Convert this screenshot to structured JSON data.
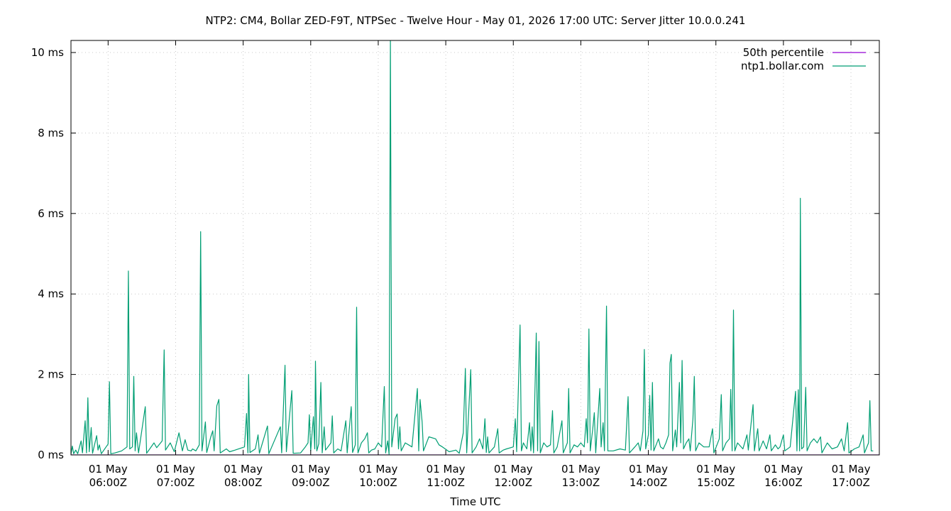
{
  "chart_data": {
    "type": "line",
    "title": "NTP2: CM4, Bollar ZED-F9T, NTPSec - Twelve Hour - May 01, 2026 17:00 UTC: Server Jitter 10.0.0.241",
    "xlabel": "Time UTC",
    "ylabel": "",
    "xlim": [
      "2026-05-01T05:27Z",
      "2026-05-01T17:25Z"
    ],
    "ylim": [
      0,
      10.3
    ],
    "y_unit": "ms",
    "grid": true,
    "legend_position": "top-right",
    "x_ticks": [
      {
        "t": 6,
        "line1": "01 May",
        "line2": "06:00Z"
      },
      {
        "t": 7,
        "line1": "01 May",
        "line2": "07:00Z"
      },
      {
        "t": 8,
        "line1": "01 May",
        "line2": "08:00Z"
      },
      {
        "t": 9,
        "line1": "01 May",
        "line2": "09:00Z"
      },
      {
        "t": 10,
        "line1": "01 May",
        "line2": "10:00Z"
      },
      {
        "t": 11,
        "line1": "01 May",
        "line2": "11:00Z"
      },
      {
        "t": 12,
        "line1": "01 May",
        "line2": "12:00Z"
      },
      {
        "t": 13,
        "line1": "01 May",
        "line2": "13:00Z"
      },
      {
        "t": 14,
        "line1": "01 May",
        "line2": "14:00Z"
      },
      {
        "t": 15,
        "line1": "01 May",
        "line2": "15:00Z"
      },
      {
        "t": 16,
        "line1": "01 May",
        "line2": "16:00Z"
      },
      {
        "t": 17,
        "line1": "01 May",
        "line2": "17:00Z"
      }
    ],
    "y_ticks": [
      {
        "v": 0,
        "label": "0 ms"
      },
      {
        "v": 2,
        "label": "2 ms"
      },
      {
        "v": 4,
        "label": "4 ms"
      },
      {
        "v": 6,
        "label": "6 ms"
      },
      {
        "v": 8,
        "label": "8 ms"
      },
      {
        "v": 10,
        "label": "10 ms"
      }
    ],
    "series": [
      {
        "name": "50th percentile",
        "color": "#9400d3",
        "points": [
          [
            5.45,
            0.0
          ],
          [
            17.42,
            0.0
          ]
        ]
      },
      {
        "name": "ntp1.bollar.com",
        "color": "#009e73",
        "points": [
          [
            5.45,
            0.02
          ],
          [
            5.47,
            0.22
          ],
          [
            5.49,
            0.03
          ],
          [
            5.52,
            0.12
          ],
          [
            5.55,
            0.03
          ],
          [
            5.6,
            0.35
          ],
          [
            5.62,
            0.05
          ],
          [
            5.66,
            0.85
          ],
          [
            5.68,
            0.05
          ],
          [
            5.7,
            1.42
          ],
          [
            5.72,
            0.08
          ],
          [
            5.75,
            0.68
          ],
          [
            5.77,
            0.04
          ],
          [
            5.83,
            0.48
          ],
          [
            5.85,
            0.12
          ],
          [
            5.87,
            0.25
          ],
          [
            5.9,
            0.03
          ],
          [
            6.0,
            0.27
          ],
          [
            6.02,
            1.82
          ],
          [
            6.04,
            0.03
          ],
          [
            6.1,
            0.05
          ],
          [
            6.2,
            0.1
          ],
          [
            6.28,
            0.2
          ],
          [
            6.3,
            4.57
          ],
          [
            6.32,
            0.15
          ],
          [
            6.36,
            0.2
          ],
          [
            6.38,
            1.95
          ],
          [
            6.4,
            0.1
          ],
          [
            6.42,
            0.55
          ],
          [
            6.45,
            0.05
          ],
          [
            6.55,
            1.2
          ],
          [
            6.57,
            0.04
          ],
          [
            6.68,
            0.3
          ],
          [
            6.72,
            0.18
          ],
          [
            6.8,
            0.35
          ],
          [
            6.83,
            2.61
          ],
          [
            6.85,
            0.12
          ],
          [
            6.92,
            0.3
          ],
          [
            6.98,
            0.08
          ],
          [
            7.05,
            0.55
          ],
          [
            7.1,
            0.1
          ],
          [
            7.14,
            0.38
          ],
          [
            7.18,
            0.12
          ],
          [
            7.23,
            0.1
          ],
          [
            7.25,
            0.15
          ],
          [
            7.28,
            0.12
          ],
          [
            7.3,
            0.1
          ],
          [
            7.35,
            0.25
          ],
          [
            7.37,
            5.55
          ],
          [
            7.39,
            0.1
          ],
          [
            7.44,
            0.82
          ],
          [
            7.46,
            0.06
          ],
          [
            7.52,
            0.45
          ],
          [
            7.55,
            0.6
          ],
          [
            7.57,
            0.1
          ],
          [
            7.61,
            1.22
          ],
          [
            7.64,
            1.38
          ],
          [
            7.66,
            0.05
          ],
          [
            7.75,
            0.15
          ],
          [
            7.8,
            0.08
          ],
          [
            7.88,
            0.12
          ],
          [
            8.02,
            0.2
          ],
          [
            8.05,
            1.03
          ],
          [
            8.07,
            0.05
          ],
          [
            8.08,
            2.0
          ],
          [
            8.1,
            0.06
          ],
          [
            8.18,
            0.15
          ],
          [
            8.22,
            0.5
          ],
          [
            8.24,
            0.04
          ],
          [
            8.36,
            0.72
          ],
          [
            8.38,
            0.03
          ],
          [
            8.55,
            0.7
          ],
          [
            8.57,
            0.05
          ],
          [
            8.62,
            2.23
          ],
          [
            8.64,
            0.08
          ],
          [
            8.72,
            1.6
          ],
          [
            8.74,
            0.04
          ],
          [
            8.85,
            0.05
          ],
          [
            8.92,
            0.2
          ],
          [
            8.96,
            0.3
          ],
          [
            8.98,
            1.0
          ],
          [
            9.0,
            0.1
          ],
          [
            9.04,
            0.95
          ],
          [
            9.06,
            0.15
          ],
          [
            9.07,
            2.33
          ],
          [
            9.09,
            0.1
          ],
          [
            9.12,
            0.28
          ],
          [
            9.15,
            1.8
          ],
          [
            9.17,
            0.05
          ],
          [
            9.2,
            0.7
          ],
          [
            9.22,
            0.12
          ],
          [
            9.3,
            0.3
          ],
          [
            9.32,
            0.97
          ],
          [
            9.34,
            0.05
          ],
          [
            9.4,
            0.15
          ],
          [
            9.45,
            0.1
          ],
          [
            9.52,
            0.85
          ],
          [
            9.54,
            0.05
          ],
          [
            9.6,
            1.2
          ],
          [
            9.62,
            0.06
          ],
          [
            9.66,
            0.25
          ],
          [
            9.68,
            3.67
          ],
          [
            9.7,
            0.05
          ],
          [
            9.75,
            0.3
          ],
          [
            9.8,
            0.4
          ],
          [
            9.84,
            0.55
          ],
          [
            9.86,
            0.05
          ],
          [
            9.9,
            0.12
          ],
          [
            9.95,
            0.15
          ],
          [
            10.0,
            0.3
          ],
          [
            10.05,
            0.2
          ],
          [
            10.09,
            1.7
          ],
          [
            10.11,
            0.05
          ],
          [
            10.14,
            0.35
          ],
          [
            10.16,
            0.02
          ],
          [
            10.18,
            10.3
          ],
          [
            10.2,
            0.2
          ],
          [
            10.25,
            0.9
          ],
          [
            10.28,
            1.02
          ],
          [
            10.3,
            0.15
          ],
          [
            10.32,
            0.7
          ],
          [
            10.34,
            0.1
          ],
          [
            10.4,
            0.3
          ],
          [
            10.5,
            0.2
          ],
          [
            10.58,
            1.65
          ],
          [
            10.6,
            0.1
          ],
          [
            10.62,
            1.38
          ],
          [
            10.65,
            0.82
          ],
          [
            10.67,
            0.1
          ],
          [
            10.75,
            0.45
          ],
          [
            10.85,
            0.4
          ],
          [
            10.9,
            0.25
          ],
          [
            10.95,
            0.2
          ],
          [
            11.05,
            0.08
          ],
          [
            11.15,
            0.12
          ],
          [
            11.2,
            0.04
          ],
          [
            11.26,
            0.55
          ],
          [
            11.29,
            2.15
          ],
          [
            11.31,
            0.05
          ],
          [
            11.37,
            2.12
          ],
          [
            11.39,
            0.05
          ],
          [
            11.45,
            0.2
          ],
          [
            11.5,
            0.4
          ],
          [
            11.55,
            0.15
          ],
          [
            11.58,
            0.9
          ],
          [
            11.6,
            0.06
          ],
          [
            11.62,
            0.45
          ],
          [
            11.64,
            0.05
          ],
          [
            11.72,
            0.2
          ],
          [
            11.77,
            0.65
          ],
          [
            11.79,
            0.05
          ],
          [
            11.85,
            0.12
          ],
          [
            11.9,
            0.15
          ],
          [
            12.0,
            0.2
          ],
          [
            12.03,
            0.9
          ],
          [
            12.05,
            0.08
          ],
          [
            12.1,
            3.23
          ],
          [
            12.12,
            0.1
          ],
          [
            12.15,
            0.3
          ],
          [
            12.2,
            0.15
          ],
          [
            12.24,
            0.8
          ],
          [
            12.26,
            0.1
          ],
          [
            12.28,
            0.7
          ],
          [
            12.3,
            0.05
          ],
          [
            12.34,
            3.03
          ],
          [
            12.36,
            0.1
          ],
          [
            12.38,
            2.82
          ],
          [
            12.4,
            0.05
          ],
          [
            12.45,
            0.3
          ],
          [
            12.5,
            0.2
          ],
          [
            12.55,
            0.25
          ],
          [
            12.58,
            1.1
          ],
          [
            12.6,
            0.05
          ],
          [
            12.65,
            0.2
          ],
          [
            12.72,
            0.85
          ],
          [
            12.74,
            0.05
          ],
          [
            12.8,
            0.3
          ],
          [
            12.82,
            1.65
          ],
          [
            12.84,
            0.05
          ],
          [
            12.9,
            0.25
          ],
          [
            12.95,
            0.2
          ],
          [
            13.0,
            0.3
          ],
          [
            13.05,
            0.2
          ],
          [
            13.08,
            0.9
          ],
          [
            13.1,
            0.3
          ],
          [
            13.12,
            3.13
          ],
          [
            13.14,
            0.1
          ],
          [
            13.18,
            0.7
          ],
          [
            13.2,
            1.05
          ],
          [
            13.22,
            0.05
          ],
          [
            13.28,
            1.65
          ],
          [
            13.3,
            0.2
          ],
          [
            13.33,
            0.8
          ],
          [
            13.35,
            0.1
          ],
          [
            13.38,
            3.7
          ],
          [
            13.4,
            0.1
          ],
          [
            13.48,
            0.1
          ],
          [
            13.58,
            0.15
          ],
          [
            13.66,
            0.12
          ],
          [
            13.7,
            1.45
          ],
          [
            13.72,
            0.05
          ],
          [
            13.8,
            0.2
          ],
          [
            13.85,
            0.3
          ],
          [
            13.88,
            0.1
          ],
          [
            13.92,
            0.6
          ],
          [
            13.94,
            2.62
          ],
          [
            13.96,
            0.15
          ],
          [
            14.0,
            0.5
          ],
          [
            14.02,
            1.48
          ],
          [
            14.04,
            0.12
          ],
          [
            14.06,
            1.8
          ],
          [
            14.08,
            0.1
          ],
          [
            14.15,
            0.4
          ],
          [
            14.18,
            0.2
          ],
          [
            14.22,
            0.15
          ],
          [
            14.26,
            0.3
          ],
          [
            14.3,
            0.5
          ],
          [
            14.32,
            2.28
          ],
          [
            14.34,
            2.5
          ],
          [
            14.36,
            0.1
          ],
          [
            14.4,
            0.62
          ],
          [
            14.42,
            0.2
          ],
          [
            14.46,
            1.8
          ],
          [
            14.48,
            0.3
          ],
          [
            14.5,
            2.35
          ],
          [
            14.52,
            0.15
          ],
          [
            14.56,
            0.3
          ],
          [
            14.6,
            0.4
          ],
          [
            14.62,
            0.1
          ],
          [
            14.66,
            0.9
          ],
          [
            14.68,
            1.95
          ],
          [
            14.7,
            0.1
          ],
          [
            14.75,
            0.3
          ],
          [
            14.82,
            0.2
          ],
          [
            14.9,
            0.2
          ],
          [
            14.95,
            0.65
          ],
          [
            14.97,
            0.05
          ],
          [
            15.05,
            0.4
          ],
          [
            15.08,
            1.5
          ],
          [
            15.1,
            0.1
          ],
          [
            15.15,
            0.3
          ],
          [
            15.2,
            0.4
          ],
          [
            15.22,
            1.63
          ],
          [
            15.24,
            0.1
          ],
          [
            15.26,
            3.6
          ],
          [
            15.28,
            0.1
          ],
          [
            15.32,
            0.3
          ],
          [
            15.4,
            0.15
          ],
          [
            15.46,
            0.5
          ],
          [
            15.48,
            0.12
          ],
          [
            15.55,
            1.25
          ],
          [
            15.57,
            0.1
          ],
          [
            15.6,
            0.45
          ],
          [
            15.62,
            0.65
          ],
          [
            15.64,
            0.1
          ],
          [
            15.7,
            0.35
          ],
          [
            15.75,
            0.15
          ],
          [
            15.8,
            0.5
          ],
          [
            15.82,
            0.1
          ],
          [
            15.88,
            0.25
          ],
          [
            15.92,
            0.15
          ],
          [
            15.95,
            0.2
          ],
          [
            16.0,
            0.5
          ],
          [
            16.02,
            0.1
          ],
          [
            16.1,
            0.2
          ],
          [
            16.18,
            1.58
          ],
          [
            16.2,
            0.1
          ],
          [
            16.22,
            1.62
          ],
          [
            16.24,
            0.1
          ],
          [
            16.25,
            6.38
          ],
          [
            16.27,
            0.15
          ],
          [
            16.3,
            0.2
          ],
          [
            16.33,
            1.68
          ],
          [
            16.35,
            0.1
          ],
          [
            16.4,
            0.3
          ],
          [
            16.45,
            0.4
          ],
          [
            16.5,
            0.3
          ],
          [
            16.55,
            0.45
          ],
          [
            16.57,
            0.05
          ],
          [
            16.65,
            0.3
          ],
          [
            16.72,
            0.15
          ],
          [
            16.8,
            0.2
          ],
          [
            16.86,
            0.4
          ],
          [
            16.9,
            0.1
          ],
          [
            16.95,
            0.8
          ],
          [
            16.97,
            0.05
          ],
          [
            17.05,
            0.15
          ],
          [
            17.12,
            0.2
          ],
          [
            17.18,
            0.5
          ],
          [
            17.2,
            0.05
          ],
          [
            17.26,
            0.3
          ],
          [
            17.28,
            1.35
          ],
          [
            17.3,
            0.1
          ],
          [
            17.33,
            0.1
          ]
        ]
      }
    ]
  }
}
